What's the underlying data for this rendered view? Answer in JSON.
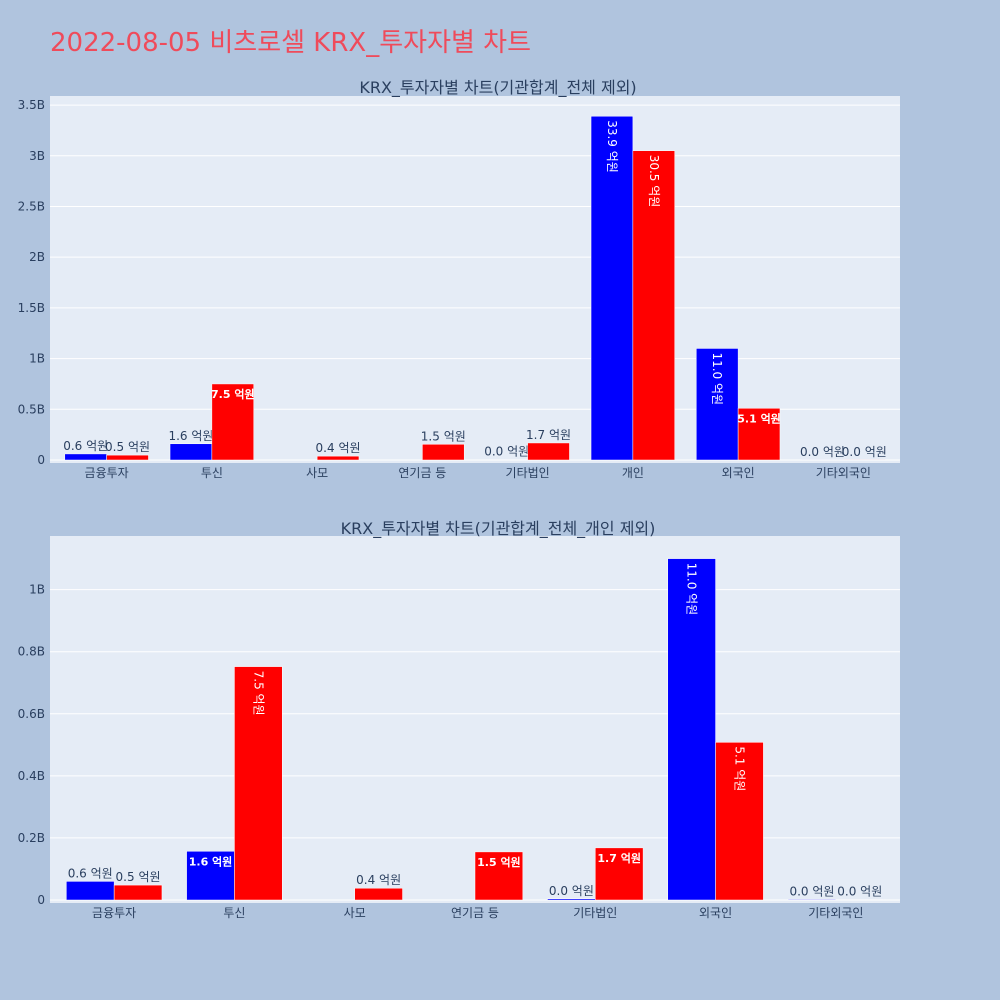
{
  "title": "2022-08-05 비츠로셀 KRX_투자자별 차트",
  "colors": {
    "buy": "#0000ff",
    "sell": "#ff0000",
    "plot_bg": "#e5ecf6",
    "page_bg": "#b0c4de",
    "title": "#ef4b5b"
  },
  "chart_data": [
    {
      "type": "bar",
      "title": "KRX_투자자별 차트(기관합계_전체 제외)",
      "categories": [
        "금융투자",
        "투신",
        "사모",
        "연기금 등",
        "기타법인",
        "개인",
        "외국인",
        "기타외국인"
      ],
      "series": [
        {
          "values": [
            60000000,
            160000000,
            0,
            0,
            3000000,
            3390000000,
            1100000000,
            2000000
          ],
          "labels": [
            "0.6 억원",
            "1.6 억원",
            "",
            "",
            "0.0 억원",
            "33.9 억원",
            "11.0 억원",
            "0.0 억원"
          ]
        },
        {
          "values": [
            48000000,
            750000000,
            38000000,
            155000000,
            168000000,
            3050000000,
            510000000,
            1000000
          ],
          "labels": [
            "0.5 억원",
            "7.5 억원",
            "0.4 억원",
            "1.5 억원",
            "1.7 억원",
            "30.5 억원",
            "5.1 억원",
            "0.0 억원"
          ]
        }
      ],
      "ylim": [
        0,
        3550000000
      ],
      "yticks": [
        0,
        500000000,
        1000000000,
        1500000000,
        2000000000,
        2500000000,
        3000000000,
        3500000000
      ],
      "ytick_labels": [
        "0",
        "0.5B",
        "1B",
        "1.5B",
        "2B",
        "2.5B",
        "3B",
        "3.5B"
      ],
      "grid": true
    },
    {
      "type": "bar",
      "title": "KRX_투자자별 차트(기관합계_전체_개인 제외)",
      "categories": [
        "금융투자",
        "투신",
        "사모",
        "연기금 등",
        "기타법인",
        "외국인",
        "기타외국인"
      ],
      "series": [
        {
          "values": [
            60000000,
            157000000,
            0,
            0,
            4000000,
            1100000000,
            2000000
          ],
          "labels": [
            "0.6 억원",
            "1.6 억원",
            "",
            "",
            "0.0 억원",
            "11.0 억원",
            "0.0 억원"
          ]
        },
        {
          "values": [
            48000000,
            752000000,
            38000000,
            155000000,
            168000000,
            508000000,
            1000000
          ],
          "labels": [
            "0.5 억원",
            "7.5 억원",
            "0.4 억원",
            "1.5 억원",
            "1.7 억원",
            "5.1 억원",
            "0.0 억원"
          ]
        }
      ],
      "ylim": [
        0,
        1160000000
      ],
      "yticks": [
        0,
        200000000,
        400000000,
        600000000,
        800000000,
        1000000000
      ],
      "ytick_labels": [
        "0",
        "0.2B",
        "0.4B",
        "0.6B",
        "0.8B",
        "1B"
      ],
      "grid": true
    }
  ]
}
